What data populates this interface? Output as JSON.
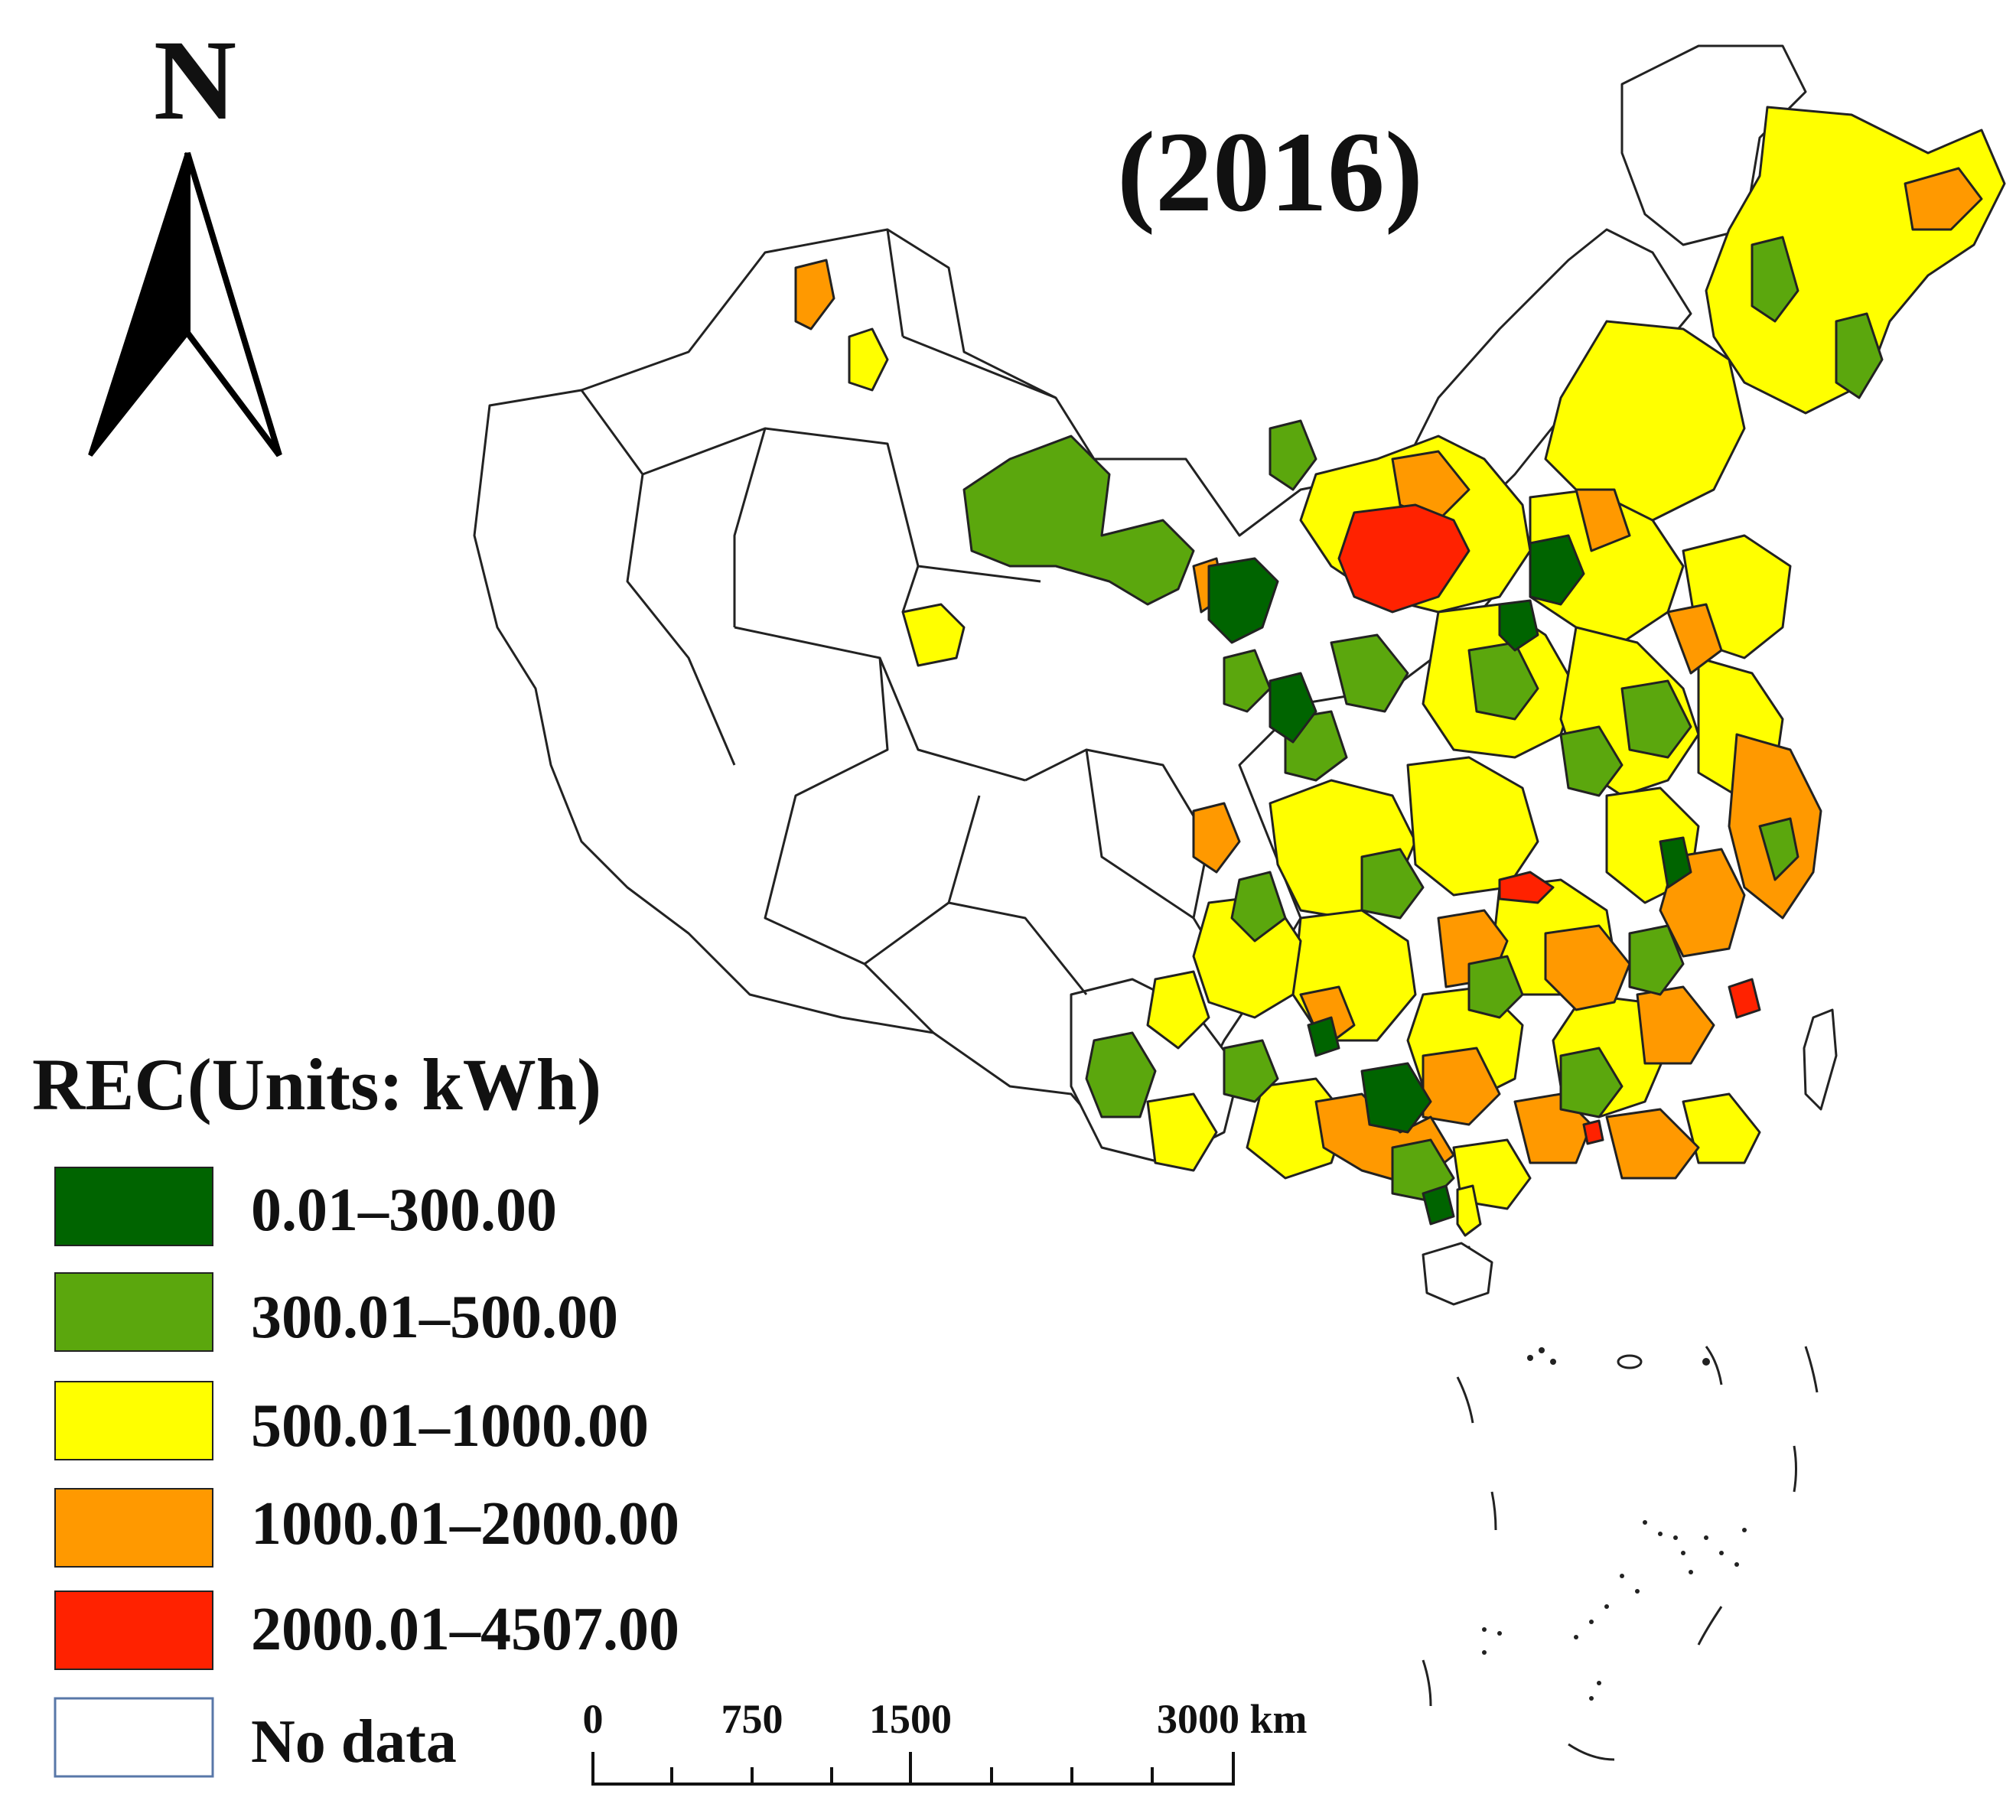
{
  "map": {
    "year_title": "(2016)",
    "north_label": "N",
    "legend": {
      "title": "REC(Units: kWh)",
      "items": [
        {
          "label": "0.01–300.00",
          "color": "#006400"
        },
        {
          "label": "300.01–500.00",
          "color": "#5ba70d"
        },
        {
          "label": "500.01–1000.00",
          "color": "#ffff00"
        },
        {
          "label": "1000.01–2000.00",
          "color": "#ff9900"
        },
        {
          "label": "2000.01–4507.00",
          "color": "#ff2200"
        },
        {
          "label": "No data",
          "color": "#ffffff"
        }
      ]
    },
    "scale_bar": {
      "labels": [
        "0",
        "750",
        "1500",
        "3000 km"
      ]
    }
  }
}
